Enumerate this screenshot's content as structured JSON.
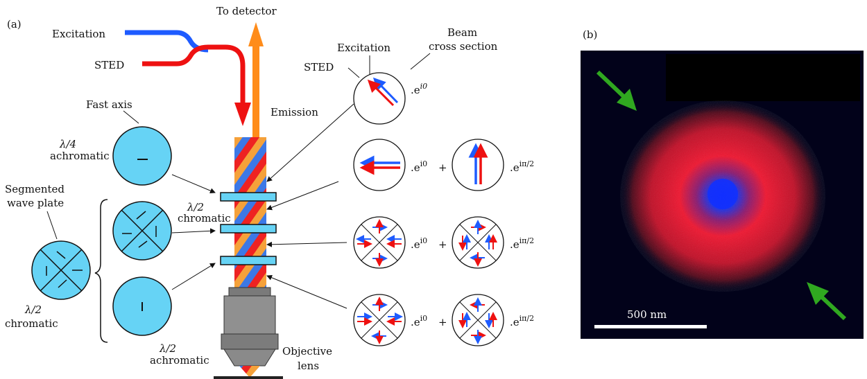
{
  "panel_a": {
    "tag": "(a)",
    "labels": {
      "to_detector": "To detector",
      "excitation_in": "Excitation",
      "sted_in": "STED",
      "beam_cross_line1": "Beam",
      "beam_cross_line2": "cross section",
      "excitation_arrow": "Excitation",
      "sted_arrow": "STED",
      "emission": "Emission",
      "fast_axis": "Fast axis",
      "quarter_achromatic_line1": "λ/4",
      "quarter_achromatic_line2": "achromatic",
      "half_chromatic_mid_line1": "λ/2",
      "half_chromatic_mid_line2": "chromatic",
      "segmented_line1": "Segmented",
      "segmented_line2": "wave plate",
      "half_chromatic_left_line1": "λ/2",
      "half_chromatic_left_line2": "chromatic",
      "half_achromatic_line1": "λ/2",
      "half_achromatic_line2": "achromatic",
      "objective_line1": "Objective",
      "objective_line2": "lens"
    },
    "phase_terms": {
      "row1": ".e",
      "row1_sup": "i0",
      "row2_left": ".e",
      "row2_left_sup": "i0",
      "plus": "+",
      "row2_right": ".e",
      "row2_right_sup": "iπ/2",
      "row3_left": ".e",
      "row3_left_sup": "i0",
      "row3_right": ".e",
      "row3_right_sup": "iπ/2",
      "row4_left": ".e",
      "row4_left_sup": "i0",
      "row4_right": ".e",
      "row4_right_sup": "iπ/2"
    },
    "colors": {
      "excitation": "#1e5bff",
      "sted": "#ee1111",
      "emission": "#ff8c1a",
      "waveplate": "#66d3f5",
      "stripe_orange": "#f5a13a",
      "objective": "#8c8c8c"
    }
  },
  "panel_b": {
    "tag": "(b)",
    "scale_bar_label": "500 nm",
    "colors": {
      "background": "#02021a",
      "donut": "#d8142a",
      "center": "#1030ff",
      "pointer": "#30a820"
    }
  }
}
